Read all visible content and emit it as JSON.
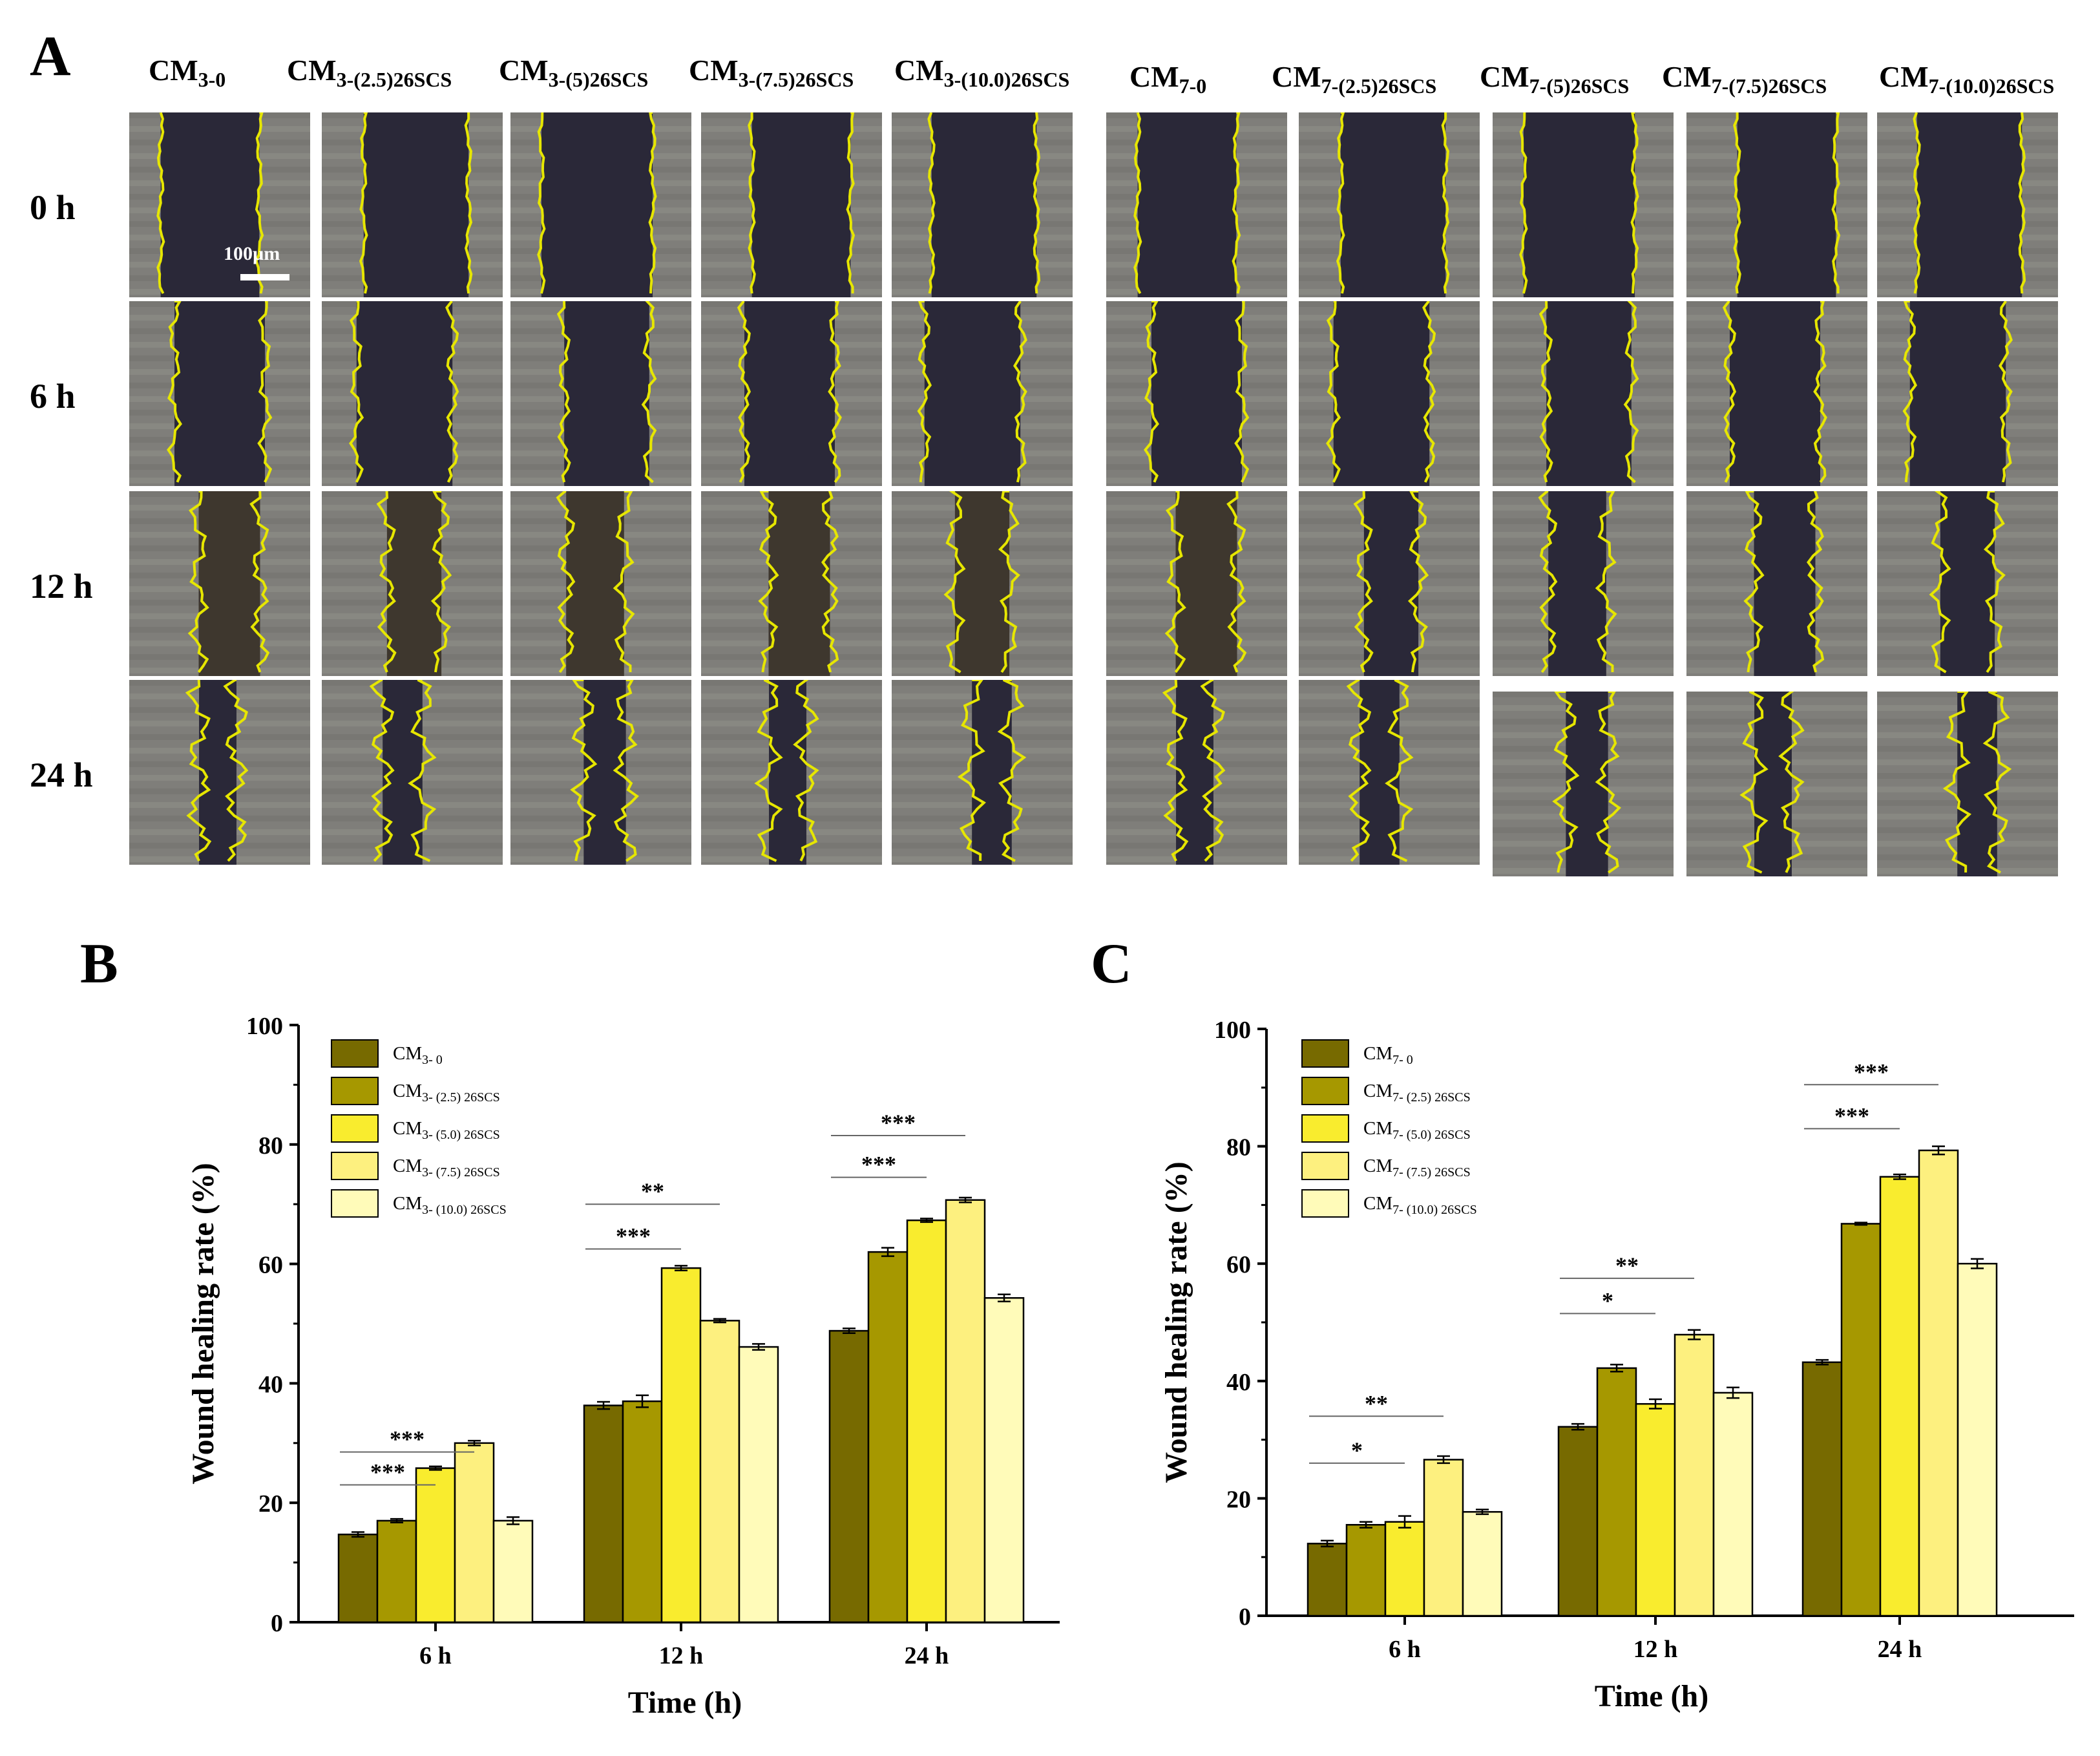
{
  "panel_a": {
    "letter": "A",
    "row_labels": [
      "0 h",
      "6 h",
      "12 h",
      "24 h"
    ],
    "scale_bar_label": "100µm",
    "columns_left": [
      {
        "base": "CM",
        "sub": "3-0"
      },
      {
        "base": "CM",
        "sub": "3-(2.5)26SCS"
      },
      {
        "base": "CM",
        "sub": "3-(5)26SCS"
      },
      {
        "base": "CM",
        "sub": "3-(7.5)26SCS"
      },
      {
        "base": "CM",
        "sub": "3-(10.0)26SCS"
      }
    ],
    "columns_right": [
      {
        "base": "CM",
        "sub": "7-0"
      },
      {
        "base": "CM",
        "sub": "7-(2.5)26SCS"
      },
      {
        "base": "CM",
        "sub": "7-(5)26SCS"
      },
      {
        "base": "CM",
        "sub": "7-(7.5)26SCS"
      },
      {
        "base": "CM",
        "sub": "7-(10.0)26SCS"
      }
    ],
    "wound_gap_fraction": [
      0.58,
      0.5,
      0.32,
      0.22
    ],
    "colors": {
      "dark_gap": "#2a2838",
      "cell_texture": "#7f7e7a",
      "edge": "#e6e600"
    }
  },
  "chart_data": [
    {
      "panel": "B",
      "type": "bar",
      "xlabel": "Time (h)",
      "ylabel": "Wound healing rate (%)",
      "ylim": [
        0,
        100
      ],
      "yticks": [
        0,
        20,
        40,
        60,
        80,
        100
      ],
      "categories": [
        "6 h",
        "12 h",
        "24 h"
      ],
      "legend_position": "top-left",
      "series": [
        {
          "name_base": "CM",
          "name_sub": "3- 0",
          "color": "#776a00",
          "values": [
            14.7,
            36.3,
            48.8
          ],
          "errors": [
            0.4,
            0.6,
            0.4
          ]
        },
        {
          "name_base": "CM",
          "name_sub": "3- (2.5) 26SCS",
          "color": "#a69800",
          "values": [
            17.0,
            37.0,
            62.0
          ],
          "errors": [
            0.3,
            1.0,
            0.7
          ]
        },
        {
          "name_base": "CM",
          "name_sub": "3- (5.0) 26SCS",
          "color": "#f9ec2e",
          "values": [
            25.8,
            59.3,
            67.3
          ],
          "errors": [
            0.3,
            0.4,
            0.3
          ]
        },
        {
          "name_base": "CM",
          "name_sub": "3- (7.5) 26SCS",
          "color": "#fdf07f",
          "values": [
            30.0,
            50.5,
            70.7
          ],
          "errors": [
            0.4,
            0.3,
            0.4
          ]
        },
        {
          "name_base": "CM",
          "name_sub": "3- (10.0) 26SCS",
          "color": "#fffbb9",
          "values": [
            17.0,
            46.1,
            54.3
          ],
          "errors": [
            0.6,
            0.5,
            0.6
          ]
        }
      ],
      "significance": [
        {
          "label": "***",
          "group": 0,
          "from": 0,
          "to": 2,
          "y": 23.0
        },
        {
          "label": "***",
          "group": 0,
          "from": 0,
          "to": 3,
          "y": 28.5
        },
        {
          "label": "***",
          "group": 1,
          "from": 0,
          "to": 2,
          "y": 62.5
        },
        {
          "label": "**",
          "group": 1,
          "from": 0,
          "to": 3,
          "y": 70.0
        },
        {
          "label": "***",
          "group": 2,
          "from": 0,
          "to": 2,
          "y": 74.5
        },
        {
          "label": "***",
          "group": 2,
          "from": 0,
          "to": 3,
          "y": 81.5
        }
      ]
    },
    {
      "panel": "C",
      "type": "bar",
      "xlabel": "Time (h)",
      "ylabel": "Wound healing rate (%)",
      "ylim": [
        0,
        100
      ],
      "yticks": [
        0,
        20,
        40,
        60,
        80,
        100
      ],
      "categories": [
        "6 h",
        "12 h",
        "24 h"
      ],
      "legend_position": "top-left",
      "series": [
        {
          "name_base": "CM",
          "name_sub": "7- 0",
          "color": "#776a00",
          "values": [
            12.3,
            32.2,
            43.2
          ],
          "errors": [
            0.5,
            0.5,
            0.4
          ]
        },
        {
          "name_base": "CM",
          "name_sub": "7- (2.5) 26SCS",
          "color": "#a69800",
          "values": [
            15.5,
            42.2,
            66.8
          ],
          "errors": [
            0.5,
            0.6,
            0.2
          ]
        },
        {
          "name_base": "CM",
          "name_sub": "7- (5.0) 26SCS",
          "color": "#f9ec2e",
          "values": [
            16.0,
            36.1,
            74.8
          ],
          "errors": [
            1.0,
            0.8,
            0.4
          ]
        },
        {
          "name_base": "CM",
          "name_sub": "7- (7.5) 26SCS",
          "color": "#fdf07f",
          "values": [
            26.6,
            47.9,
            79.3
          ],
          "errors": [
            0.6,
            0.8,
            0.7
          ]
        },
        {
          "name_base": "CM",
          "name_sub": "7- (10.0) 26SCS",
          "color": "#fffbb9",
          "values": [
            17.7,
            38.0,
            60.0
          ],
          "errors": [
            0.4,
            0.9,
            0.8
          ]
        }
      ],
      "significance": [
        {
          "label": "*",
          "group": 0,
          "from": 0,
          "to": 2,
          "y": 26.0
        },
        {
          "label": "**",
          "group": 0,
          "from": 0,
          "to": 3,
          "y": 34.0
        },
        {
          "label": "*",
          "group": 1,
          "from": 0,
          "to": 2,
          "y": 51.5
        },
        {
          "label": "**",
          "group": 1,
          "from": 0,
          "to": 3,
          "y": 57.5
        },
        {
          "label": "***",
          "group": 2,
          "from": 0,
          "to": 2,
          "y": 83.0
        },
        {
          "label": "***",
          "group": 2,
          "from": 0,
          "to": 3,
          "y": 90.5
        }
      ]
    }
  ]
}
